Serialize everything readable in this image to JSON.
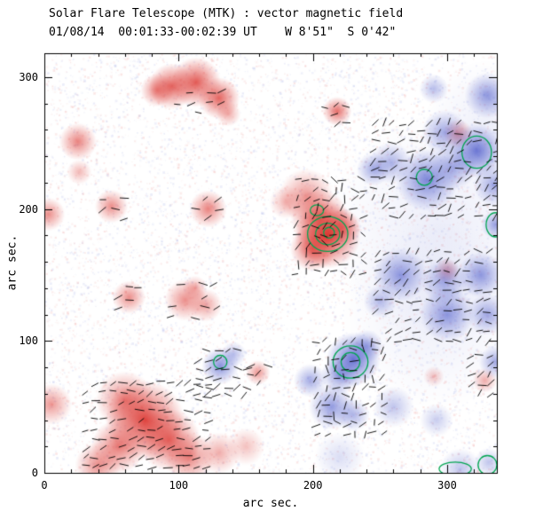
{
  "chart_data": {
    "type": "heatmap",
    "title": "Solar Flare Telescope (MTK) : vector magnetic field",
    "subtitle": "01/08/14  00:01:33-00:02:39 UT    W 8'51\"  S 0'42\"",
    "xlabel": "arc sec.",
    "ylabel": "arc sec.",
    "xlim": [
      0,
      337
    ],
    "ylim": [
      0,
      318
    ],
    "xticks": [
      0,
      100,
      200,
      300
    ],
    "yticks": [
      0,
      100,
      200,
      300
    ],
    "minor_tick_interval": 20,
    "legend": "none",
    "grid": false,
    "colors": {
      "positive": "#d93028",
      "negative": "#4a58ca",
      "positive_rgb": "219,48,42",
      "negative_rgb": "74,88,202",
      "contour": "#00a550",
      "vector": "#000000",
      "frame": "#000000",
      "background": "#ffffff"
    },
    "red_blobs": [
      [
        95,
        293,
        11,
        0.75
      ],
      [
        113,
        296,
        12,
        0.8
      ],
      [
        130,
        284,
        10,
        0.75
      ],
      [
        84,
        290,
        8,
        0.6
      ],
      [
        137,
        272,
        6,
        0.4
      ],
      [
        218,
        274,
        7,
        0.7
      ],
      [
        25,
        251,
        9,
        0.6
      ],
      [
        3,
        196,
        8,
        0.55
      ],
      [
        26,
        228,
        6,
        0.35
      ],
      [
        50,
        202,
        8,
        0.55
      ],
      [
        122,
        200,
        9,
        0.6
      ],
      [
        195,
        210,
        13,
        0.5
      ],
      [
        205,
        193,
        14,
        0.7
      ],
      [
        211,
        180,
        16,
        0.95
      ],
      [
        200,
        170,
        11,
        0.75
      ],
      [
        222,
        186,
        9,
        0.6
      ],
      [
        180,
        205,
        8,
        0.35
      ],
      [
        63,
        133,
        8,
        0.55
      ],
      [
        105,
        131,
        10,
        0.55
      ],
      [
        120,
        127,
        8,
        0.45
      ],
      [
        112,
        140,
        6,
        0.4
      ],
      [
        159,
        76,
        6,
        0.5
      ],
      [
        60,
        55,
        14,
        0.6
      ],
      [
        75,
        40,
        19,
        0.9
      ],
      [
        93,
        25,
        15,
        0.75
      ],
      [
        55,
        20,
        13,
        0.65
      ],
      [
        108,
        12,
        12,
        0.6
      ],
      [
        40,
        6,
        11,
        0.55
      ],
      [
        5,
        52,
        10,
        0.5
      ],
      [
        130,
        15,
        10,
        0.4
      ],
      [
        150,
        20,
        9,
        0.3
      ],
      [
        300,
        153,
        6,
        0.45
      ],
      [
        328,
        70,
        6,
        0.4
      ],
      [
        290,
        73,
        5,
        0.3
      ],
      [
        308,
        257,
        7,
        0.5
      ]
    ],
    "blue_blobs": [
      [
        285,
        222,
        15,
        0.7
      ],
      [
        322,
        244,
        13,
        0.8
      ],
      [
        305,
        232,
        11,
        0.5
      ],
      [
        335,
        218,
        10,
        0.5
      ],
      [
        298,
        258,
        11,
        0.5
      ],
      [
        258,
        235,
        10,
        0.45
      ],
      [
        245,
        230,
        8,
        0.5
      ],
      [
        330,
        286,
        11,
        0.6
      ],
      [
        290,
        291,
        7,
        0.4
      ],
      [
        265,
        150,
        13,
        0.6
      ],
      [
        298,
        145,
        11,
        0.5
      ],
      [
        325,
        150,
        11,
        0.6
      ],
      [
        300,
        120,
        13,
        0.6
      ],
      [
        330,
        120,
        10,
        0.5
      ],
      [
        250,
        130,
        8,
        0.4
      ],
      [
        230,
        86,
        13,
        0.85
      ],
      [
        220,
        74,
        9,
        0.6
      ],
      [
        240,
        96,
        8,
        0.5
      ],
      [
        214,
        50,
        11,
        0.6
      ],
      [
        230,
        44,
        8,
        0.45
      ],
      [
        198,
        70,
        8,
        0.5
      ],
      [
        131,
        81,
        9,
        0.65
      ],
      [
        141,
        90,
        6,
        0.4
      ],
      [
        260,
        50,
        10,
        0.35
      ],
      [
        292,
        40,
        8,
        0.3
      ],
      [
        336,
        84,
        8,
        0.5
      ],
      [
        336,
        188,
        7,
        0.55
      ],
      [
        310,
        3,
        10,
        0.35
      ],
      [
        331,
        8,
        7,
        0.35
      ],
      [
        220,
        12,
        12,
        0.2
      ],
      [
        295,
        185,
        55,
        0.1
      ],
      [
        292,
        120,
        45,
        0.09
      ],
      [
        330,
        265,
        30,
        0.09
      ]
    ],
    "contours": [
      [
        211,
        181,
        15,
        13
      ],
      [
        211,
        181,
        9,
        8
      ],
      [
        212,
        182,
        4,
        4
      ],
      [
        203,
        199,
        5,
        4
      ],
      [
        228,
        84,
        13,
        12
      ],
      [
        228,
        84,
        7,
        7
      ],
      [
        322,
        243,
        11,
        12
      ],
      [
        283,
        224,
        6,
        6
      ],
      [
        336,
        188,
        7,
        9
      ],
      [
        131,
        84,
        5,
        5
      ],
      [
        306,
        3,
        12,
        5
      ],
      [
        330,
        6,
        7,
        7
      ]
    ],
    "vector_clusters": [
      {
        "x0": 30,
        "x1": 125,
        "y0": 5,
        "y1": 70,
        "step": 7,
        "angle": 15,
        "jitter": 30
      },
      {
        "x0": 188,
        "x1": 242,
        "y0": 152,
        "y1": 222,
        "step": 7,
        "angle": 25,
        "jitter": 70
      },
      {
        "x0": 246,
        "x1": 337,
        "y0": 195,
        "y1": 265,
        "step": 7,
        "angle": 30,
        "jitter": 45
      },
      {
        "x0": 248,
        "x1": 337,
        "y0": 100,
        "y1": 170,
        "step": 7.5,
        "angle": 20,
        "jitter": 45
      },
      {
        "x0": 203,
        "x1": 252,
        "y0": 30,
        "y1": 105,
        "step": 7,
        "angle": 40,
        "jitter": 70
      },
      {
        "x0": 115,
        "x1": 150,
        "y0": 58,
        "y1": 95,
        "step": 7,
        "angle": 15,
        "jitter": 40
      },
      {
        "x0": 100,
        "x1": 135,
        "y0": 272,
        "y1": 295,
        "step": 8,
        "angle": 10,
        "jitter": 30,
        "sparse": true
      },
      {
        "x0": 210,
        "x1": 230,
        "y0": 264,
        "y1": 284,
        "step": 7,
        "angle": 20,
        "jitter": 40,
        "sparse": true
      },
      {
        "x0": 95,
        "x1": 130,
        "y0": 118,
        "y1": 142,
        "step": 8,
        "angle": 10,
        "jitter": 30,
        "sparse": true
      },
      {
        "x0": 55,
        "x1": 75,
        "y0": 124,
        "y1": 140,
        "step": 8,
        "angle": 10,
        "jitter": 30,
        "sparse": true
      },
      {
        "x0": 152,
        "x1": 170,
        "y0": 68,
        "y1": 84,
        "step": 7,
        "angle": 20,
        "jitter": 40,
        "sparse": true
      },
      {
        "x0": 318,
        "x1": 337,
        "y0": 60,
        "y1": 92,
        "step": 7,
        "angle": 30,
        "jitter": 40
      },
      {
        "x0": 44,
        "x1": 62,
        "y0": 192,
        "y1": 210,
        "step": 8,
        "angle": 15,
        "jitter": 30,
        "sparse": true
      },
      {
        "x0": 113,
        "x1": 130,
        "y0": 192,
        "y1": 208,
        "step": 8,
        "angle": 15,
        "jitter": 30,
        "sparse": true
      }
    ]
  }
}
